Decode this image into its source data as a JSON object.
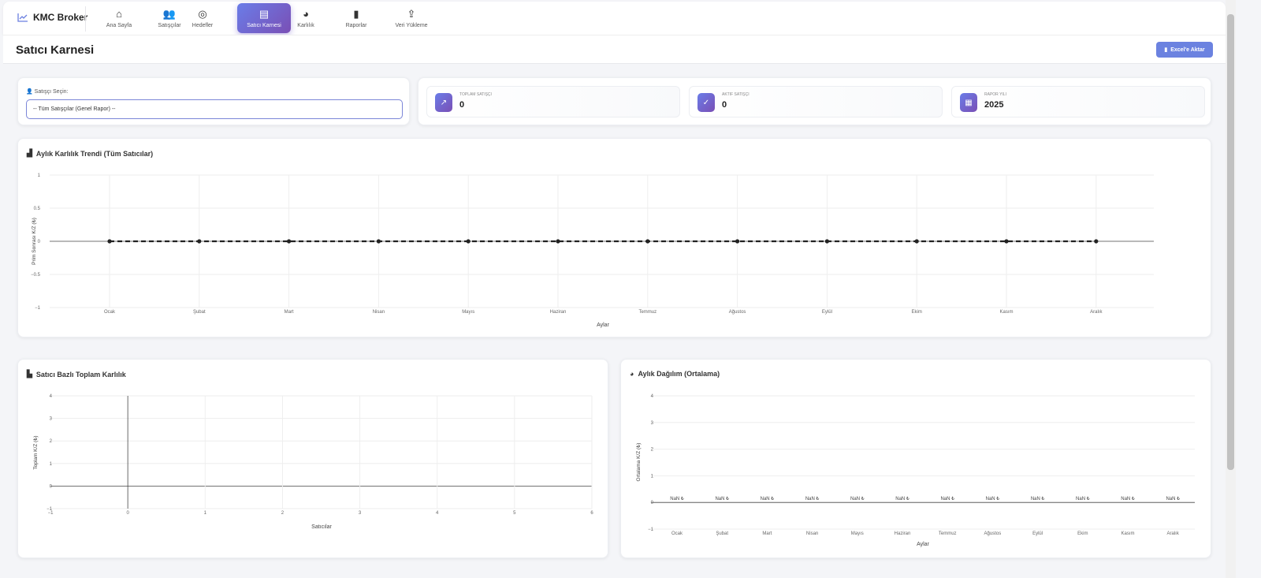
{
  "brand": {
    "name": "KMC Broker",
    "icon": "chart-line-icon"
  },
  "nav": [
    {
      "label": "Ana Sayfa",
      "icon": "home-icon",
      "glyph": "⌂"
    },
    {
      "label": "Satışçılar",
      "icon": "users-icon",
      "glyph": "👥"
    },
    {
      "label": "Hedefler",
      "icon": "target-icon",
      "glyph": "◎"
    },
    {
      "label": "Satıcı Karnesi",
      "icon": "id-card-icon",
      "glyph": "▤",
      "active": true
    },
    {
      "label": "Karlılık",
      "icon": "pie-chart-icon",
      "glyph": "◕"
    },
    {
      "label": "Raporlar",
      "icon": "file-icon",
      "glyph": "▮"
    },
    {
      "label": "Veri Yükleme",
      "icon": "upload-icon",
      "glyph": "⇪"
    }
  ],
  "header": {
    "title": "Satıcı Karnesi",
    "export_label": "Excel'e Aktar"
  },
  "filter": {
    "label": "Satışçı Seçin:",
    "selected": "-- Tüm Satışçılar (Genel Rapor) --"
  },
  "stats": [
    {
      "label": "Toplam Satışçı",
      "value": "0",
      "icon": "chart-line-icon",
      "glyph": "↗"
    },
    {
      "label": "Aktif Satışçı",
      "value": "0",
      "icon": "check-circle-icon",
      "glyph": "✓"
    },
    {
      "label": "Rapor Yılı",
      "value": "2025",
      "icon": "calendar-icon",
      "glyph": "▦"
    }
  ],
  "chart_data": [
    {
      "type": "line",
      "title": "Aylık Karlılık Trendi (Tüm Satıcılar)",
      "xlabel": "Aylar",
      "ylabel": "Prim Sonrası K/Z (₺)",
      "categories": [
        "Ocak",
        "Şubat",
        "Mart",
        "Nisan",
        "Mayıs",
        "Haziran",
        "Temmuz",
        "Ağustos",
        "Eylül",
        "Ekim",
        "Kasım",
        "Aralık"
      ],
      "values": [
        0,
        0,
        0,
        0,
        0,
        0,
        0,
        0,
        0,
        0,
        0,
        0
      ],
      "ylim": [
        -1,
        1
      ],
      "yticks": [
        "1",
        "0.5",
        "0",
        "−0.5",
        "−1"
      ],
      "line_style": "dashed",
      "color": "#222222",
      "grid": true
    },
    {
      "type": "bar",
      "title": "Satıcı Bazlı Toplam Karlılık",
      "xlabel": "Satıcılar",
      "ylabel": "Toplam K/Z (₺)",
      "categories": [],
      "values": [],
      "xlim": [
        -1,
        6
      ],
      "ylim": [
        -1,
        4
      ],
      "xticks": [
        "−1",
        "0",
        "1",
        "2",
        "3",
        "4",
        "5",
        "6"
      ],
      "yticks": [
        "4",
        "3",
        "2",
        "1",
        "0",
        "−1"
      ],
      "grid": true
    },
    {
      "type": "bar",
      "title": "Aylık Dağılım (Ortalama)",
      "xlabel": "Aylar",
      "ylabel": "Ortalama K/Z (₺)",
      "categories": [
        "Ocak",
        "Şubat",
        "Mart",
        "Nisan",
        "Mayıs",
        "Haziran",
        "Temmuz",
        "Ağustos",
        "Eylül",
        "Ekim",
        "Kasım",
        "Aralık"
      ],
      "data_labels": [
        "NaN ₺",
        "NaN ₺",
        "NaN ₺",
        "NaN ₺",
        "NaN ₺",
        "NaN ₺",
        "NaN ₺",
        "NaN ₺",
        "NaN ₺",
        "NaN ₺",
        "NaN ₺",
        "NaN ₺"
      ],
      "ylim": [
        -1,
        4
      ],
      "yticks": [
        "4",
        "3",
        "2",
        "1",
        "0",
        "−1"
      ],
      "grid": true
    }
  ]
}
